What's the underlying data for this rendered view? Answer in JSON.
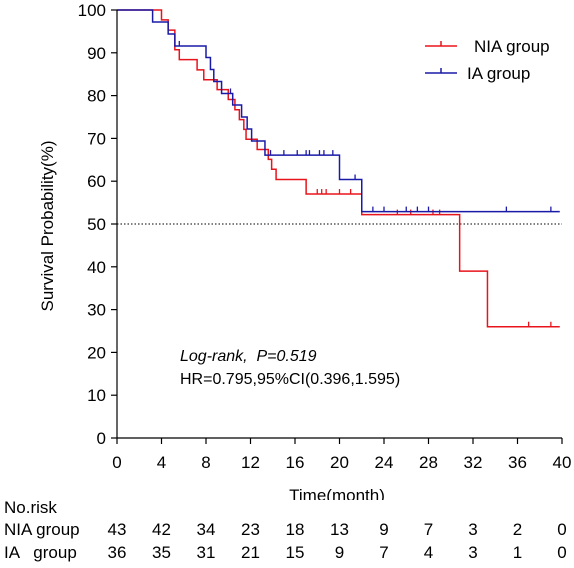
{
  "chart_data": {
    "type": "line",
    "ylabel": "Survival Probability(%)",
    "xlabel": "Time(month)",
    "xlim": [
      0,
      40
    ],
    "ylim": [
      0,
      100
    ],
    "x_ticks": [
      0,
      4,
      8,
      12,
      16,
      20,
      24,
      28,
      32,
      36,
      40
    ],
    "y_ticks": [
      0,
      10,
      20,
      30,
      40,
      50,
      60,
      70,
      80,
      90,
      100
    ],
    "reference_line": {
      "y": 50,
      "style": "dotted"
    },
    "legend": {
      "placement": "top-right"
    },
    "series": [
      {
        "name": "NIA group",
        "color": "#e8141c",
        "steps": [
          [
            0,
            100
          ],
          [
            4,
            97.7
          ],
          [
            4.6,
            95.3
          ],
          [
            5.2,
            90.7
          ],
          [
            5.6,
            88.4
          ],
          [
            7.2,
            86.0
          ],
          [
            7.8,
            83.7
          ],
          [
            9.0,
            81.4
          ],
          [
            10.0,
            79.1
          ],
          [
            10.6,
            76.7
          ],
          [
            11.0,
            74.4
          ],
          [
            11.4,
            72.1
          ],
          [
            11.6,
            69.8
          ],
          [
            12.6,
            67.4
          ],
          [
            13.6,
            65.1
          ],
          [
            13.9,
            62.8
          ],
          [
            14.3,
            60.4
          ],
          [
            17.0,
            57.0
          ],
          [
            22.0,
            52.2
          ],
          [
            30.8,
            39.0
          ],
          [
            33.3,
            26.0
          ],
          [
            39.8,
            26.0
          ]
        ],
        "censor_times": [
          18.0,
          18.4,
          18.8,
          20.0,
          21.0,
          25.2,
          26.4,
          28.4,
          29.0,
          37.0,
          39.0
        ]
      },
      {
        "name": "IA group",
        "color": "#1a1aa8",
        "steps": [
          [
            0,
            100
          ],
          [
            3.2,
            97.2
          ],
          [
            4.6,
            94.4
          ],
          [
            5.2,
            91.6
          ],
          [
            8.0,
            88.9
          ],
          [
            8.4,
            86.1
          ],
          [
            8.7,
            83.3
          ],
          [
            9.4,
            80.5
          ],
          [
            10.4,
            77.8
          ],
          [
            11.2,
            75.0
          ],
          [
            11.7,
            72.2
          ],
          [
            12.1,
            69.4
          ],
          [
            13.3,
            66.1
          ],
          [
            20.0,
            60.4
          ],
          [
            22.0,
            52.9
          ],
          [
            37.0,
            52.9
          ],
          [
            39.8,
            52.9
          ]
        ],
        "censor_times": [
          5.6,
          10.2,
          13.8,
          15.0,
          16.2,
          17.0,
          17.3,
          18.2,
          18.6,
          19.4,
          21.4,
          23.0,
          24.0,
          26.0,
          27.0,
          28.0,
          35.0,
          39.0
        ]
      }
    ],
    "annotations": [
      "Log-rank,  P=0.519",
      "HR=0.795,95%CI(0.396,1.595)"
    ]
  },
  "risk_table": {
    "title": "No.risk",
    "rows": [
      {
        "label": "NIA group",
        "values": [
          "43",
          "42",
          "34",
          "23",
          "18",
          "13",
          "9",
          "7",
          "3",
          "2",
          "0"
        ]
      },
      {
        "label": "IA   group",
        "values": [
          "36",
          "35",
          "31",
          "21",
          "15",
          "9",
          "7",
          "4",
          "3",
          "1",
          "0"
        ]
      }
    ]
  }
}
